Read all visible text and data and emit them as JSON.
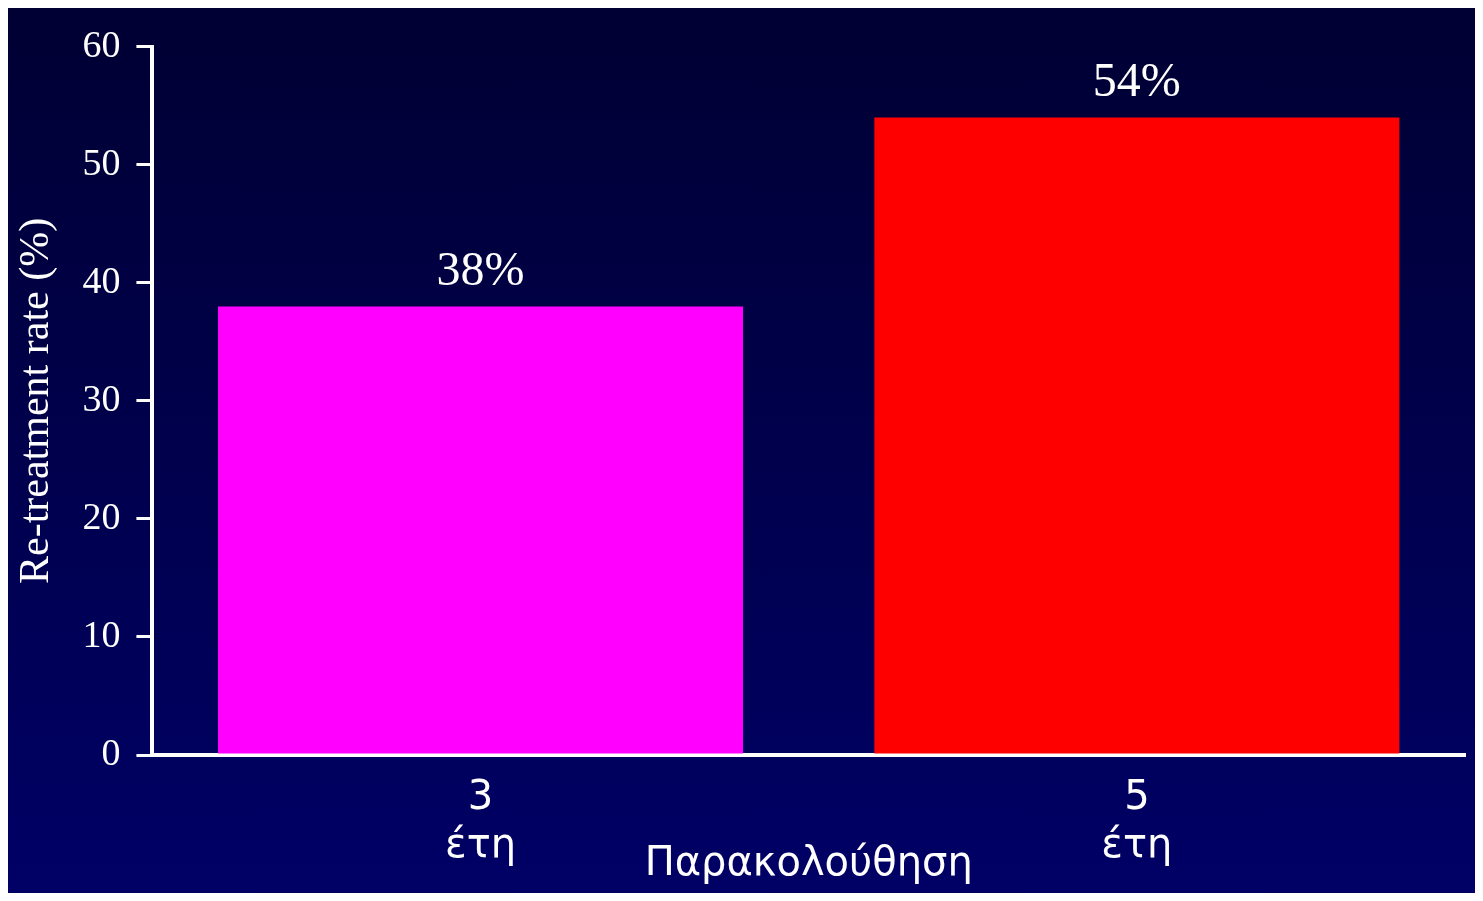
{
  "chart_data": {
    "type": "bar",
    "categories": [
      "3 έτη",
      "5 έτη"
    ],
    "series": [
      {
        "color": "#ff00ff",
        "values": [
          38,
          null
        ]
      },
      {
        "color": "#ff0000",
        "values": [
          null,
          54
        ]
      }
    ],
    "value_labels": [
      "38%",
      "54%"
    ],
    "xlabel": "Παρακολούθηση",
    "ylabel": "Re-treatment rate (%)",
    "ylim": [
      0,
      60
    ],
    "yticks": [
      0,
      10,
      20,
      30,
      40,
      50,
      60
    ],
    "grid": false,
    "legend": false
  }
}
